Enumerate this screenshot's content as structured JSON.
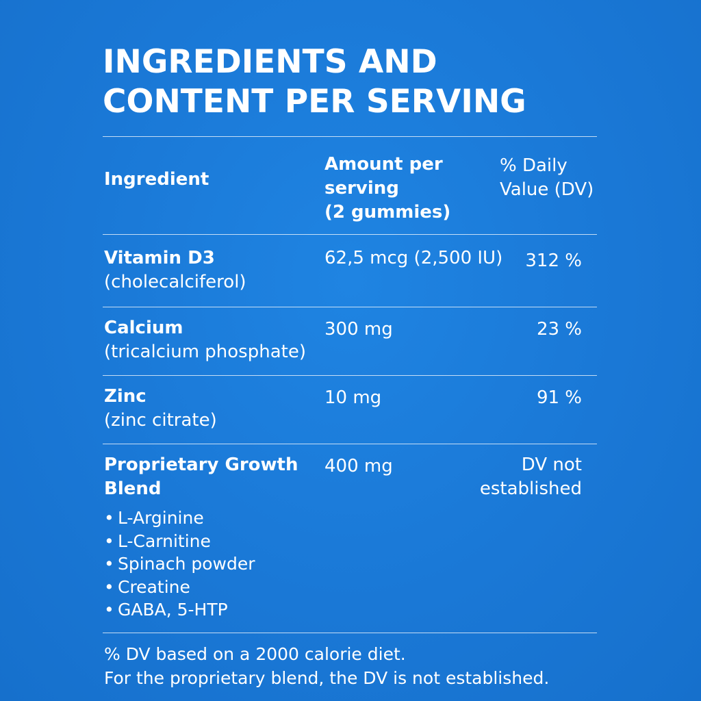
{
  "title": {
    "line1": "INGREDIENTS AND",
    "line2": "CONTENT PER SERVING"
  },
  "headers": {
    "ingredient": "Ingredient",
    "amount": [
      "Amount per",
      "serving",
      "(2 gummies)"
    ],
    "dv": [
      "% Daily",
      "Value (DV)"
    ]
  },
  "rows": [
    {
      "name": "Vitamin D3",
      "sub": "(cholecalciferol)",
      "amount": "62,5 mcg (2,500 IU)",
      "dv": "312 %"
    },
    {
      "name": "Calcium",
      "sub": "(tricalcium phosphate)",
      "amount": "300 mg",
      "dv": "23 %"
    },
    {
      "name": "Zinc",
      "sub": "(zinc citrate)",
      "amount": "10 mg",
      "dv": "91 %"
    },
    {
      "name": [
        "Proprietary Growth",
        "Blend"
      ],
      "amount": "400 mg",
      "dv": [
        "DV not",
        "established"
      ],
      "components": [
        "L-Arginine",
        "L-Carnitine",
        "Spinach powder",
        "Creatine",
        "GABA, 5-HTP"
      ]
    }
  ],
  "footer": {
    "line1": "% DV based on a 2000 calorie diet.",
    "line2": "For the proprietary blend, the DV is not established."
  },
  "colors": {
    "background": "#1a7ad8",
    "text": "#ffffff"
  }
}
